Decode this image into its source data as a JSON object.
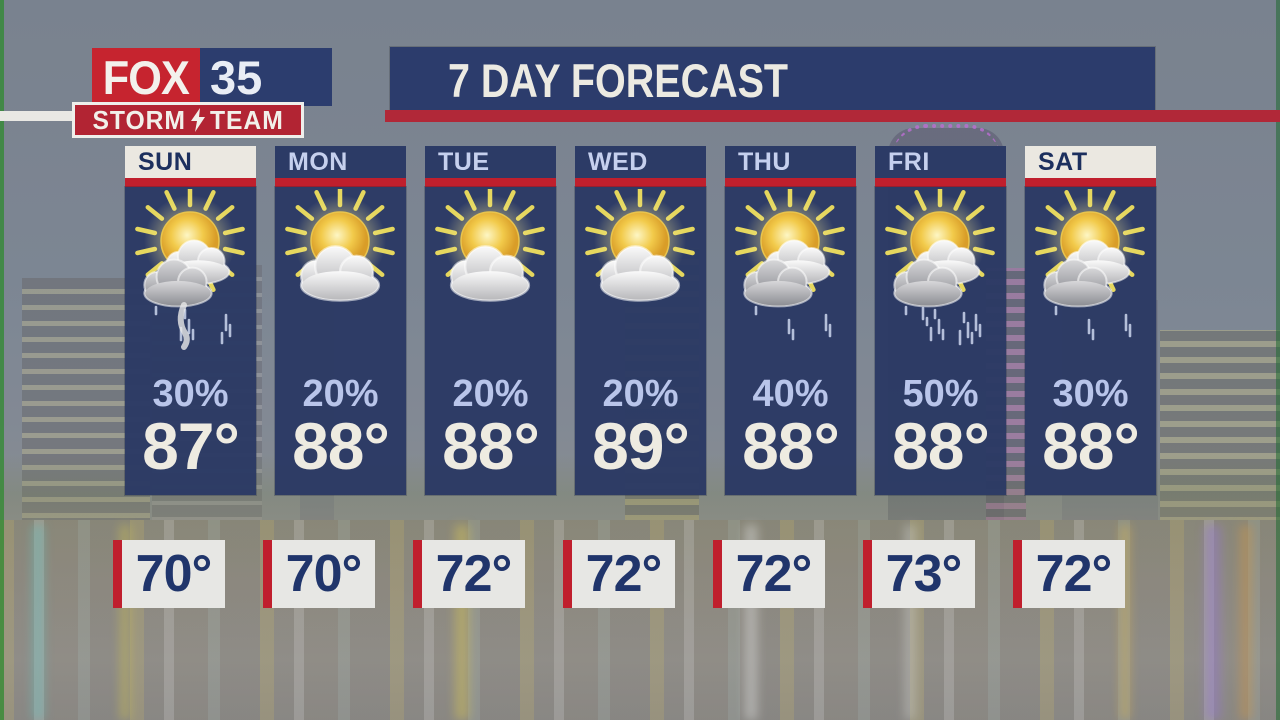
{
  "logo": {
    "fox": "FOX",
    "number": "35",
    "storm": "STORM",
    "team": "TEAM",
    "bolt_icon": "lightning-bolt-icon"
  },
  "header": {
    "title": "7 DAY FORECAST"
  },
  "colors": {
    "panel_navy": "#2b3a64",
    "banner_navy": "#2c3c6c",
    "stripe_red": "#b12838",
    "bar_red": "#c01f2d",
    "fox_red": "#c6242f",
    "weekend_header_bg": "#ebe8e1",
    "weekday_label": "#c6d0ee",
    "precip_text": "#b9c5ea",
    "high_text": "#eeebe1",
    "low_text": "#20356b"
  },
  "days": [
    {
      "label": "SUN",
      "weekend": true,
      "icon": "sun-clouds-rain-icon",
      "clouds": 2,
      "rain": "moderate",
      "precip": "30%",
      "high": "87°",
      "low": "70°"
    },
    {
      "label": "MON",
      "weekend": false,
      "icon": "sun-cloud-icon",
      "clouds": 1,
      "rain": "none",
      "precip": "20%",
      "high": "88°",
      "low": "70°"
    },
    {
      "label": "TUE",
      "weekend": false,
      "icon": "sun-cloud-icon",
      "clouds": 1,
      "rain": "none",
      "precip": "20%",
      "high": "88°",
      "low": "72°"
    },
    {
      "label": "WED",
      "weekend": false,
      "icon": "sun-cloud-icon",
      "clouds": 1,
      "rain": "none",
      "precip": "20%",
      "high": "89°",
      "low": "72°"
    },
    {
      "label": "THU",
      "weekend": false,
      "icon": "sun-clouds-rain-icon",
      "clouds": 2,
      "rain": "light",
      "precip": "40%",
      "high": "88°",
      "low": "72°"
    },
    {
      "label": "FRI",
      "weekend": false,
      "icon": "sun-clouds-rain-icon",
      "clouds": 2,
      "rain": "heavy",
      "precip": "50%",
      "high": "88°",
      "low": "73°"
    },
    {
      "label": "SAT",
      "weekend": true,
      "icon": "sun-clouds-rain-icon",
      "clouds": 2,
      "rain": "light",
      "precip": "30%",
      "high": "88°",
      "low": "72°"
    }
  ]
}
